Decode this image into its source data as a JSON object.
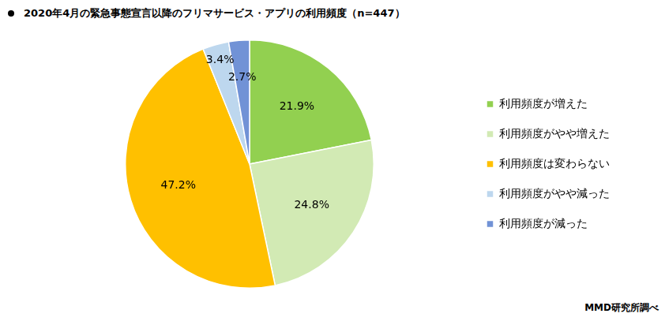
{
  "chart_data": {
    "type": "pie",
    "title": "2020年4月の緊急事態宣言以降のフリマサービス・アプリの利用頻度（n=447）",
    "annotation": "MMD研究所調べ",
    "categories": [
      "利用頻度が増えた",
      "利用頻度がやや増えた",
      "利用頻度は変わらない",
      "利用頻度がやや減った",
      "利用頻度が減った"
    ],
    "values": [
      21.9,
      24.8,
      47.2,
      3.4,
      2.7
    ],
    "value_labels": [
      "21.9%",
      "24.8%",
      "47.2%",
      "3.4%",
      "2.7%"
    ],
    "colors": [
      "#92d050",
      "#d2eab4",
      "#ffc000",
      "#bdd7ee",
      "#7192d6"
    ],
    "data_labels": true,
    "legend": "right"
  }
}
